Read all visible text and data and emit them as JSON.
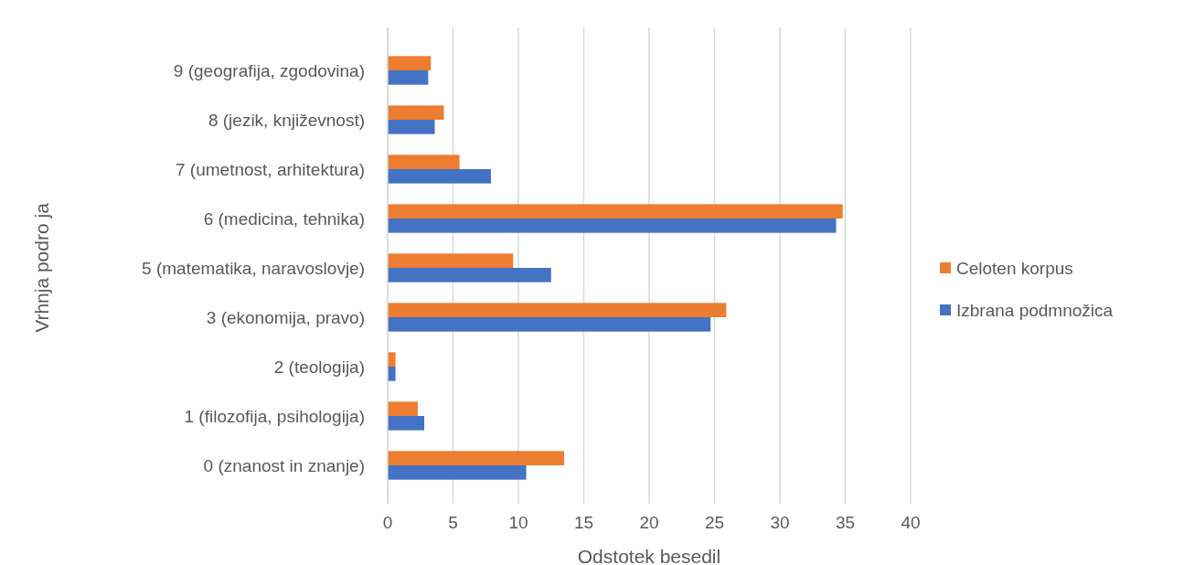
{
  "chart_data": {
    "type": "bar",
    "orientation": "horizontal",
    "xlabel": "Odstotek besedil",
    "ylabel": "Vrhnja podro ja",
    "categories": [
      "9 (geografija, zgodovina)",
      "8 (jezik, književnost)",
      "7 (umetnost, arhitektura)",
      "6 (medicina, tehnika)",
      "5 (matematika, naravoslovje)",
      "3 (ekonomija, pravo)",
      "2 (teologija)",
      "1 (filozofija, psihologija)",
      "0 (znanost in znanje)"
    ],
    "series": [
      {
        "name": "Celoten korpus",
        "color": "#ed7d31",
        "values": [
          3.3,
          4.3,
          5.5,
          34.8,
          9.6,
          25.9,
          0.6,
          2.3,
          13.5
        ]
      },
      {
        "name": "Izbrana podmnožica",
        "color": "#4472c4",
        "values": [
          3.1,
          3.6,
          7.9,
          34.3,
          12.5,
          24.7,
          0.6,
          2.8,
          10.6
        ]
      }
    ],
    "xlim": [
      0,
      40
    ],
    "xticks": [
      0,
      5,
      10,
      15,
      20,
      25,
      30,
      35,
      40
    ],
    "grid": "x",
    "legend": "right"
  }
}
